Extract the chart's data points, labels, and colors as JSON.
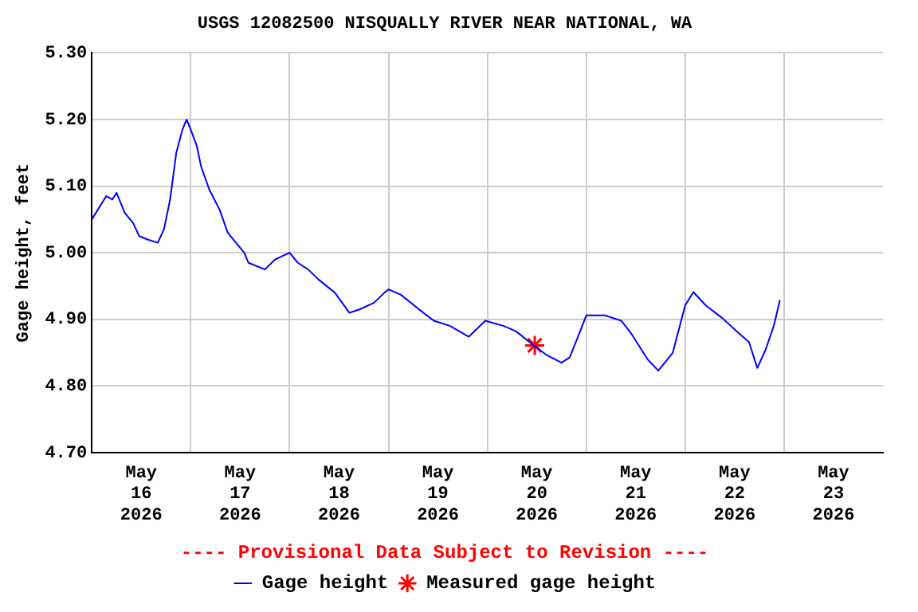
{
  "chart_data": {
    "type": "line",
    "title": "USGS 12082500 NISQUALLY RIVER NEAR NATIONAL, WA",
    "ylabel": "Gage height, feet",
    "annotations": [
      "---- Provisional Data Subject to Revision ----"
    ],
    "xlim": [
      "2026-05-16T00:00",
      "2026-05-24T00:00"
    ],
    "xticks": [
      {
        "value": "2026-05-16T12:00",
        "label": "May\n16\n2026"
      },
      {
        "value": "2026-05-17T00:00",
        "label": null
      },
      {
        "value": "2026-05-17T12:00",
        "label": "May\n17\n2026"
      },
      {
        "value": "2026-05-18T00:00",
        "label": null
      },
      {
        "value": "2026-05-18T12:00",
        "label": "May\n18\n2026"
      },
      {
        "value": "2026-05-19T00:00",
        "label": null
      },
      {
        "value": "2026-05-19T12:00",
        "label": "May\n19\n2026"
      },
      {
        "value": "2026-05-20T00:00",
        "label": null
      },
      {
        "value": "2026-05-20T12:00",
        "label": "May\n20\n2026"
      },
      {
        "value": "2026-05-21T00:00",
        "label": null
      },
      {
        "value": "2026-05-21T12:00",
        "label": "May\n21\n2026"
      },
      {
        "value": "2026-05-22T00:00",
        "label": null
      },
      {
        "value": "2026-05-22T12:00",
        "label": "May\n22\n2026"
      },
      {
        "value": "2026-05-23T00:00",
        "label": null
      },
      {
        "value": "2026-05-23T12:00",
        "label": "May\n23\n2026"
      }
    ],
    "ylim": [
      4.7,
      5.3
    ],
    "yticks": [
      {
        "value": 4.7,
        "label": "4.70"
      },
      {
        "value": 4.8,
        "label": "4.80"
      },
      {
        "value": 4.9,
        "label": "4.90"
      },
      {
        "value": 5.0,
        "label": "5.00"
      },
      {
        "value": 5.1,
        "label": "5.10"
      },
      {
        "value": 5.2,
        "label": "5.20"
      },
      {
        "value": 5.3,
        "label": "5.30"
      }
    ],
    "grid": true,
    "legend": "bottom",
    "line_style": "solid",
    "series": [
      {
        "name": "Gage height",
        "color": "#0000ff",
        "marker": "none",
        "x": [
          "2026-05-16T00:00",
          "2026-05-16T01:30",
          "2026-05-16T03:30",
          "2026-05-16T05:00",
          "2026-05-16T06:00",
          "2026-05-16T08:00",
          "2026-05-16T10:00",
          "2026-05-16T11:30",
          "2026-05-16T13:30",
          "2026-05-16T16:00",
          "2026-05-16T17:30",
          "2026-05-16T19:00",
          "2026-05-16T20:30",
          "2026-05-16T22:00",
          "2026-05-16T23:00",
          "2026-05-17T00:00",
          "2026-05-17T01:30",
          "2026-05-17T02:30",
          "2026-05-17T04:30",
          "2026-05-17T07:00",
          "2026-05-17T09:00",
          "2026-05-17T11:00",
          "2026-05-17T13:00",
          "2026-05-17T14:00",
          "2026-05-17T18:00",
          "2026-05-17T20:30",
          "2026-05-18T00:00",
          "2026-05-18T02:00",
          "2026-05-18T04:30",
          "2026-05-18T07:00",
          "2026-05-18T11:00",
          "2026-05-18T14:30",
          "2026-05-18T17:00",
          "2026-05-18T20:30",
          "2026-05-18T23:00",
          "2026-05-19T00:00",
          "2026-05-19T03:00",
          "2026-05-19T07:00",
          "2026-05-19T11:00",
          "2026-05-19T15:00",
          "2026-05-19T19:30",
          "2026-05-19T23:30",
          "2026-05-20T04:00",
          "2026-05-20T07:00",
          "2026-05-20T11:00",
          "2026-05-20T14:30",
          "2026-05-20T18:00",
          "2026-05-20T20:00",
          "2026-05-20T22:30",
          "2026-05-21T00:00",
          "2026-05-21T04:30",
          "2026-05-21T08:30",
          "2026-05-21T11:00",
          "2026-05-21T15:00",
          "2026-05-21T17:30",
          "2026-05-21T21:00",
          "2026-05-22T00:00",
          "2026-05-22T02:00",
          "2026-05-22T05:00",
          "2026-05-22T09:00",
          "2026-05-22T12:30",
          "2026-05-22T15:30",
          "2026-05-22T17:30",
          "2026-05-22T19:30",
          "2026-05-22T21:30",
          "2026-05-22T23:00"
        ],
        "values": [
          5.05,
          5.065,
          5.085,
          5.08,
          5.09,
          5.06,
          5.045,
          5.025,
          5.02,
          5.015,
          5.035,
          5.08,
          5.15,
          5.185,
          5.2,
          5.185,
          5.16,
          5.13,
          5.095,
          5.065,
          5.03,
          5.015,
          5.0,
          4.985,
          4.975,
          4.99,
          5.0,
          4.985,
          4.975,
          4.96,
          4.94,
          4.91,
          4.915,
          4.925,
          4.94,
          4.945,
          4.937,
          4.917,
          4.898,
          4.89,
          4.874,
          4.898,
          4.89,
          4.882,
          4.862,
          4.846,
          4.835,
          4.843,
          4.882,
          4.906,
          4.906,
          4.898,
          4.878,
          4.839,
          4.823,
          4.85,
          4.921,
          4.941,
          4.921,
          4.902,
          4.882,
          4.866,
          4.827,
          4.854,
          4.89,
          4.929
        ]
      },
      {
        "name": "Measured gage height",
        "type": "scatter",
        "color": "#ff0000",
        "marker": "cross",
        "x": [
          "2026-05-20T11:30"
        ],
        "values": [
          4.861
        ]
      }
    ]
  }
}
